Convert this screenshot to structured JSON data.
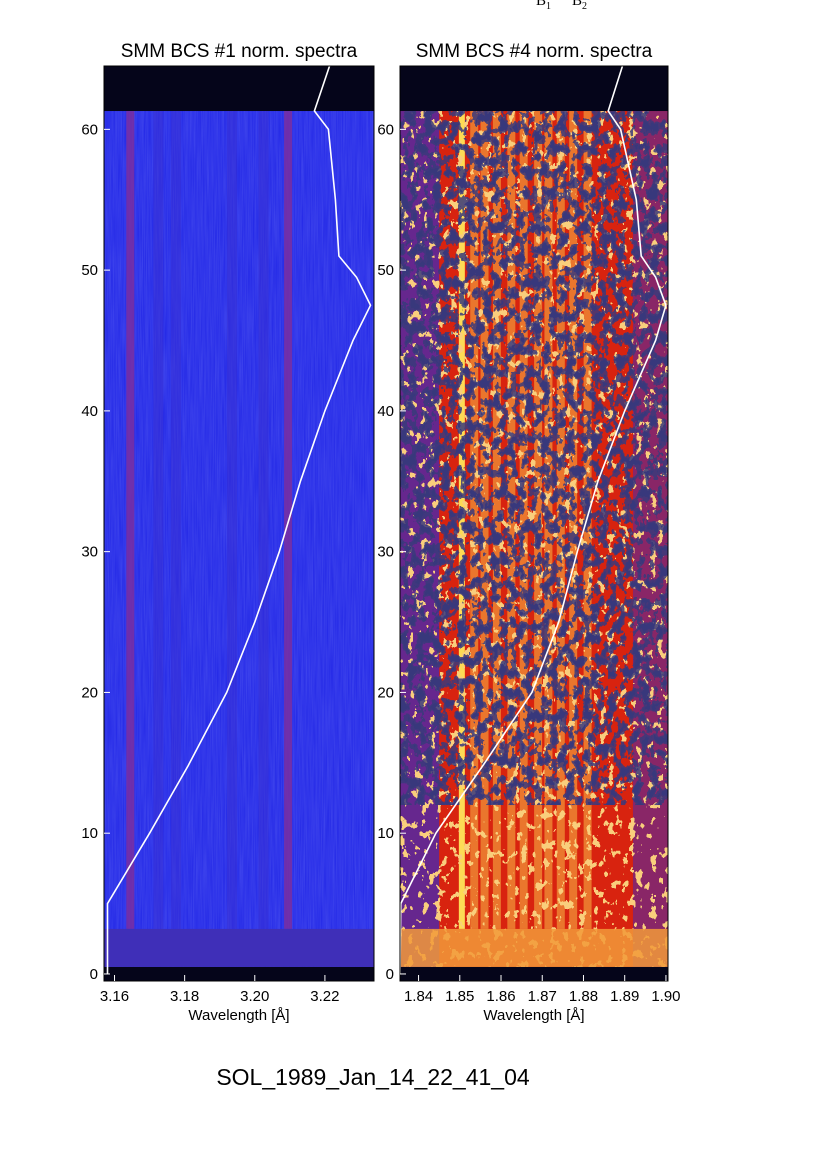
{
  "header_marks": [
    {
      "letter": "B",
      "sub": "1"
    },
    {
      "letter": "B",
      "sub": "2"
    }
  ],
  "caption": "SOL_1989_Jan_14_22_41_04",
  "colors": {
    "panel1_background": "#1f24e6",
    "panel1_line": "#7a2ea0",
    "panel2_base_red": "#d8230f",
    "panel2_orange": "#f29a3a",
    "panel2_yellow": "#ffe65a",
    "panel2_dark": "#0b0b2e",
    "panel2_blue": "#2a2ad2",
    "no_data": "#05051a",
    "overlay_curve": "#ffffff"
  },
  "chart_data": [
    {
      "type": "heatmap",
      "title": "SMM BCS #1 norm. spectra",
      "xlabel": "Wavelength [Å]",
      "ylabel": "",
      "xlim": [
        3.157,
        3.234
      ],
      "ylim": [
        -0.5,
        64.5
      ],
      "x_ticks": [
        "3.16",
        "3.18",
        "3.20",
        "3.22"
      ],
      "x_tick_values": [
        3.16,
        3.18,
        3.2,
        3.22
      ],
      "y_ticks": [
        "0",
        "10",
        "20",
        "30",
        "40",
        "50",
        "60"
      ],
      "y_tick_values": [
        0,
        10,
        20,
        30,
        40,
        50,
        60
      ],
      "data_rows": [
        0.5,
        61.3
      ],
      "emission_lines": [
        3.1645,
        3.1725,
        3.1775,
        3.1935,
        3.2025,
        3.2095
      ],
      "dominant_lines": [
        3.1645,
        3.2095
      ],
      "light_curve": [
        [
          0.0,
          3.158
        ],
        [
          5.0,
          3.158
        ],
        [
          10.0,
          3.17
        ],
        [
          14.8,
          3.181
        ],
        [
          20.0,
          3.192
        ],
        [
          25.0,
          3.2
        ],
        [
          30.0,
          3.207
        ],
        [
          35.0,
          3.213
        ],
        [
          40.0,
          3.22
        ],
        [
          45.0,
          3.228
        ],
        [
          47.5,
          3.233
        ],
        [
          49.5,
          3.229
        ],
        [
          51.0,
          3.224
        ],
        [
          55.0,
          3.223
        ],
        [
          60.0,
          3.221
        ],
        [
          61.3,
          3.217
        ],
        [
          65.0,
          3.222
        ]
      ]
    },
    {
      "type": "heatmap",
      "title": "SMM BCS #4 norm. spectra",
      "xlabel": "Wavelength [Å]",
      "ylabel": "",
      "xlim": [
        1.8355,
        1.9005
      ],
      "ylim": [
        -0.5,
        64.5
      ],
      "x_ticks": [
        "1.84",
        "1.85",
        "1.86",
        "1.87",
        "1.88",
        "1.89",
        "1.90"
      ],
      "x_tick_values": [
        1.84,
        1.85,
        1.86,
        1.87,
        1.88,
        1.89,
        1.9
      ],
      "y_ticks": [
        "0",
        "10",
        "20",
        "30",
        "40",
        "50",
        "60"
      ],
      "y_tick_values": [
        0,
        10,
        20,
        30,
        40,
        50,
        60
      ],
      "data_rows": [
        0.5,
        61.3
      ],
      "emission_lines": [
        1.8505,
        1.8535,
        1.856,
        1.859,
        1.8625,
        1.8655,
        1.869,
        1.8715,
        1.8745,
        1.8775,
        1.881
      ],
      "dominant_lines": [
        1.8505
      ],
      "light_curve": [
        [
          0.0,
          1.8355
        ],
        [
          5.0,
          1.8357
        ],
        [
          10.0,
          1.8442
        ],
        [
          14.8,
          1.8556
        ],
        [
          20.0,
          1.8675
        ],
        [
          25.0,
          1.874
        ],
        [
          30.0,
          1.8785
        ],
        [
          35.0,
          1.8835
        ],
        [
          40.0,
          1.89
        ],
        [
          45.0,
          1.8975
        ],
        [
          47.5,
          1.9
        ],
        [
          49.5,
          1.8975
        ],
        [
          51.0,
          1.894
        ],
        [
          55.0,
          1.8928
        ],
        [
          60.0,
          1.889
        ],
        [
          61.3,
          1.886
        ],
        [
          65.0,
          1.89
        ]
      ]
    }
  ]
}
